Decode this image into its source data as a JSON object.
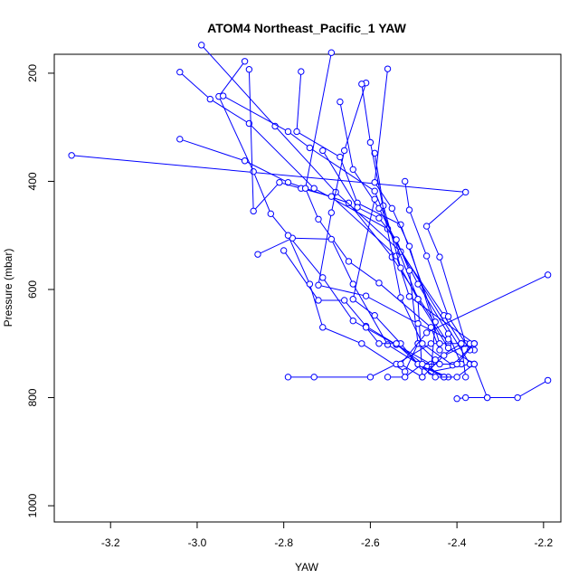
{
  "chart_data": {
    "type": "line",
    "title": "ATOM4 Northeast_Pacific_1 YAW",
    "xlabel": "YAW",
    "ylabel": "Pressure (mbar)",
    "xlim": [
      -3.33,
      -2.16
    ],
    "ylim": [
      1030,
      165
    ],
    "y_reversed": true,
    "x_ticks": [
      -3.2,
      -3.0,
      -2.8,
      -2.6,
      -2.4,
      -2.2
    ],
    "x_tick_labels": [
      "-3.2",
      "-3.0",
      "-2.8",
      "-2.6",
      "-2.4",
      "-2.2"
    ],
    "y_ticks": [
      200,
      400,
      600,
      800,
      1000
    ],
    "y_tick_labels": [
      "200",
      "400",
      "600",
      "800",
      "1000"
    ],
    "color": "#0000ff",
    "marker": "open-circle",
    "grid": false,
    "series": [
      {
        "x": [
          -3.29,
          -2.38,
          -2.47,
          -2.44,
          -2.38,
          -2.36
        ],
        "y": [
          352,
          420,
          483,
          540,
          700,
          712
        ]
      },
      {
        "x": [
          -3.04,
          -2.89,
          -2.79,
          -2.65,
          -2.55,
          -2.42
        ],
        "y": [
          322,
          362,
          402,
          440,
          540,
          700
        ]
      },
      {
        "x": [
          -3.04,
          -2.97,
          -2.88,
          -2.73,
          -2.56,
          -2.37
        ],
        "y": [
          198,
          248,
          293,
          413,
          488,
          738
        ]
      },
      {
        "x": [
          -2.99,
          -2.82,
          -2.68,
          -2.53,
          -2.43,
          -2.39,
          -2.38
        ],
        "y": [
          148,
          298,
          420,
          530,
          648,
          700,
          762
        ]
      },
      {
        "x": [
          -2.89,
          -2.95,
          -2.87,
          -2.83,
          -2.71,
          -2.64,
          -2.46
        ],
        "y": [
          178,
          243,
          382,
          460,
          578,
          658,
          738
        ]
      },
      {
        "x": [
          -2.94,
          -2.79,
          -2.74,
          -2.59,
          -2.49,
          -2.48
        ],
        "y": [
          242,
          308,
          338,
          418,
          618,
          762
        ]
      },
      {
        "x": [
          -2.88,
          -2.87,
          -2.81,
          -2.76,
          -2.69,
          -2.54,
          -2.51,
          -2.36
        ],
        "y": [
          193,
          455,
          402,
          413,
          428,
          538,
          613,
          700
        ]
      },
      {
        "x": [
          -2.76,
          -2.77,
          -2.67,
          -2.63,
          -2.53,
          -2.45,
          -2.46,
          -2.37
        ],
        "y": [
          197,
          308,
          355,
          440,
          480,
          660,
          752,
          738
        ]
      },
      {
        "x": [
          -2.69,
          -2.75,
          -2.72,
          -2.65,
          -2.58,
          -2.46,
          -2.44
        ],
        "y": [
          162,
          413,
          470,
          548,
          588,
          670,
          712
        ]
      },
      {
        "x": [
          -2.67,
          -2.64,
          -2.58,
          -2.49,
          -2.42,
          -2.39
        ],
        "y": [
          253,
          378,
          450,
          590,
          682,
          738
        ]
      },
      {
        "x": [
          -2.71,
          -2.63,
          -2.58,
          -2.54,
          -2.51,
          -2.49
        ],
        "y": [
          343,
          448,
          468,
          508,
          565,
          700
        ]
      },
      {
        "x": [
          -2.61,
          -2.66,
          -2.69,
          -2.72,
          -2.61,
          -2.49,
          -2.42
        ],
        "y": [
          218,
          343,
          458,
          592,
          612,
          663,
          692
        ]
      },
      {
        "x": [
          -2.86,
          -2.78,
          -2.69,
          -2.64,
          -2.56,
          -2.48,
          -2.42
        ],
        "y": [
          535,
          505,
          507,
          590,
          702,
          742,
          762
        ]
      },
      {
        "x": [
          -2.8,
          -2.72,
          -2.66,
          -2.61,
          -2.54,
          -2.47,
          -2.43
        ],
        "y": [
          528,
          620,
          620,
          668,
          702,
          742,
          762
        ]
      },
      {
        "x": [
          -2.79,
          -2.74,
          -2.71,
          -2.62,
          -2.52,
          -2.49,
          -2.45,
          -2.39
        ],
        "y": [
          500,
          590,
          670,
          700,
          752,
          700,
          730,
          700
        ]
      },
      {
        "x": [
          -2.79,
          -2.73,
          -2.6,
          -2.54,
          -2.46,
          -2.39
        ],
        "y": [
          762,
          762,
          762,
          738,
          700,
          700
        ]
      },
      {
        "x": [
          -2.59,
          -2.57,
          -2.53,
          -2.49,
          -2.42,
          -2.36
        ],
        "y": [
          348,
          445,
          560,
          618,
          708,
          738
        ]
      },
      {
        "x": [
          -2.59,
          -2.64,
          -2.59,
          -2.53,
          -2.49,
          -2.43
        ],
        "y": [
          433,
          618,
          648,
          700,
          738,
          762
        ]
      },
      {
        "x": [
          -2.52,
          -2.51,
          -2.47,
          -2.42,
          -2.37
        ],
        "y": [
          400,
          453,
          538,
          650,
          712
        ]
      },
      {
        "x": [
          -2.56,
          -2.59,
          -2.55,
          -2.51,
          -2.44
        ],
        "y": [
          192,
          402,
          450,
          520,
          700
        ]
      },
      {
        "x": [
          -2.62,
          -2.6,
          -2.53,
          -2.48,
          -2.41,
          -2.36
        ],
        "y": [
          220,
          328,
          615,
          700,
          740,
          700
        ]
      },
      {
        "x": [
          -2.19,
          -2.26,
          -2.33,
          -2.38,
          -2.4
        ],
        "y": [
          768,
          800,
          800,
          800,
          802
        ]
      },
      {
        "x": [
          -2.19,
          -2.47,
          -2.53,
          -2.48,
          -2.43,
          -2.37
        ],
        "y": [
          573,
          680,
          738,
          762,
          722,
          700
        ]
      },
      {
        "x": [
          -2.61,
          -2.58,
          -2.54,
          -2.49,
          -2.45,
          -2.4,
          -2.36,
          -2.33
        ],
        "y": [
          670,
          700,
          700,
          738,
          762,
          762,
          738,
          800
        ]
      },
      {
        "x": [
          -2.56,
          -2.52,
          -2.48,
          -2.44,
          -2.4,
          -2.36
        ],
        "y": [
          762,
          762,
          738,
          738,
          738,
          700
        ]
      }
    ]
  }
}
